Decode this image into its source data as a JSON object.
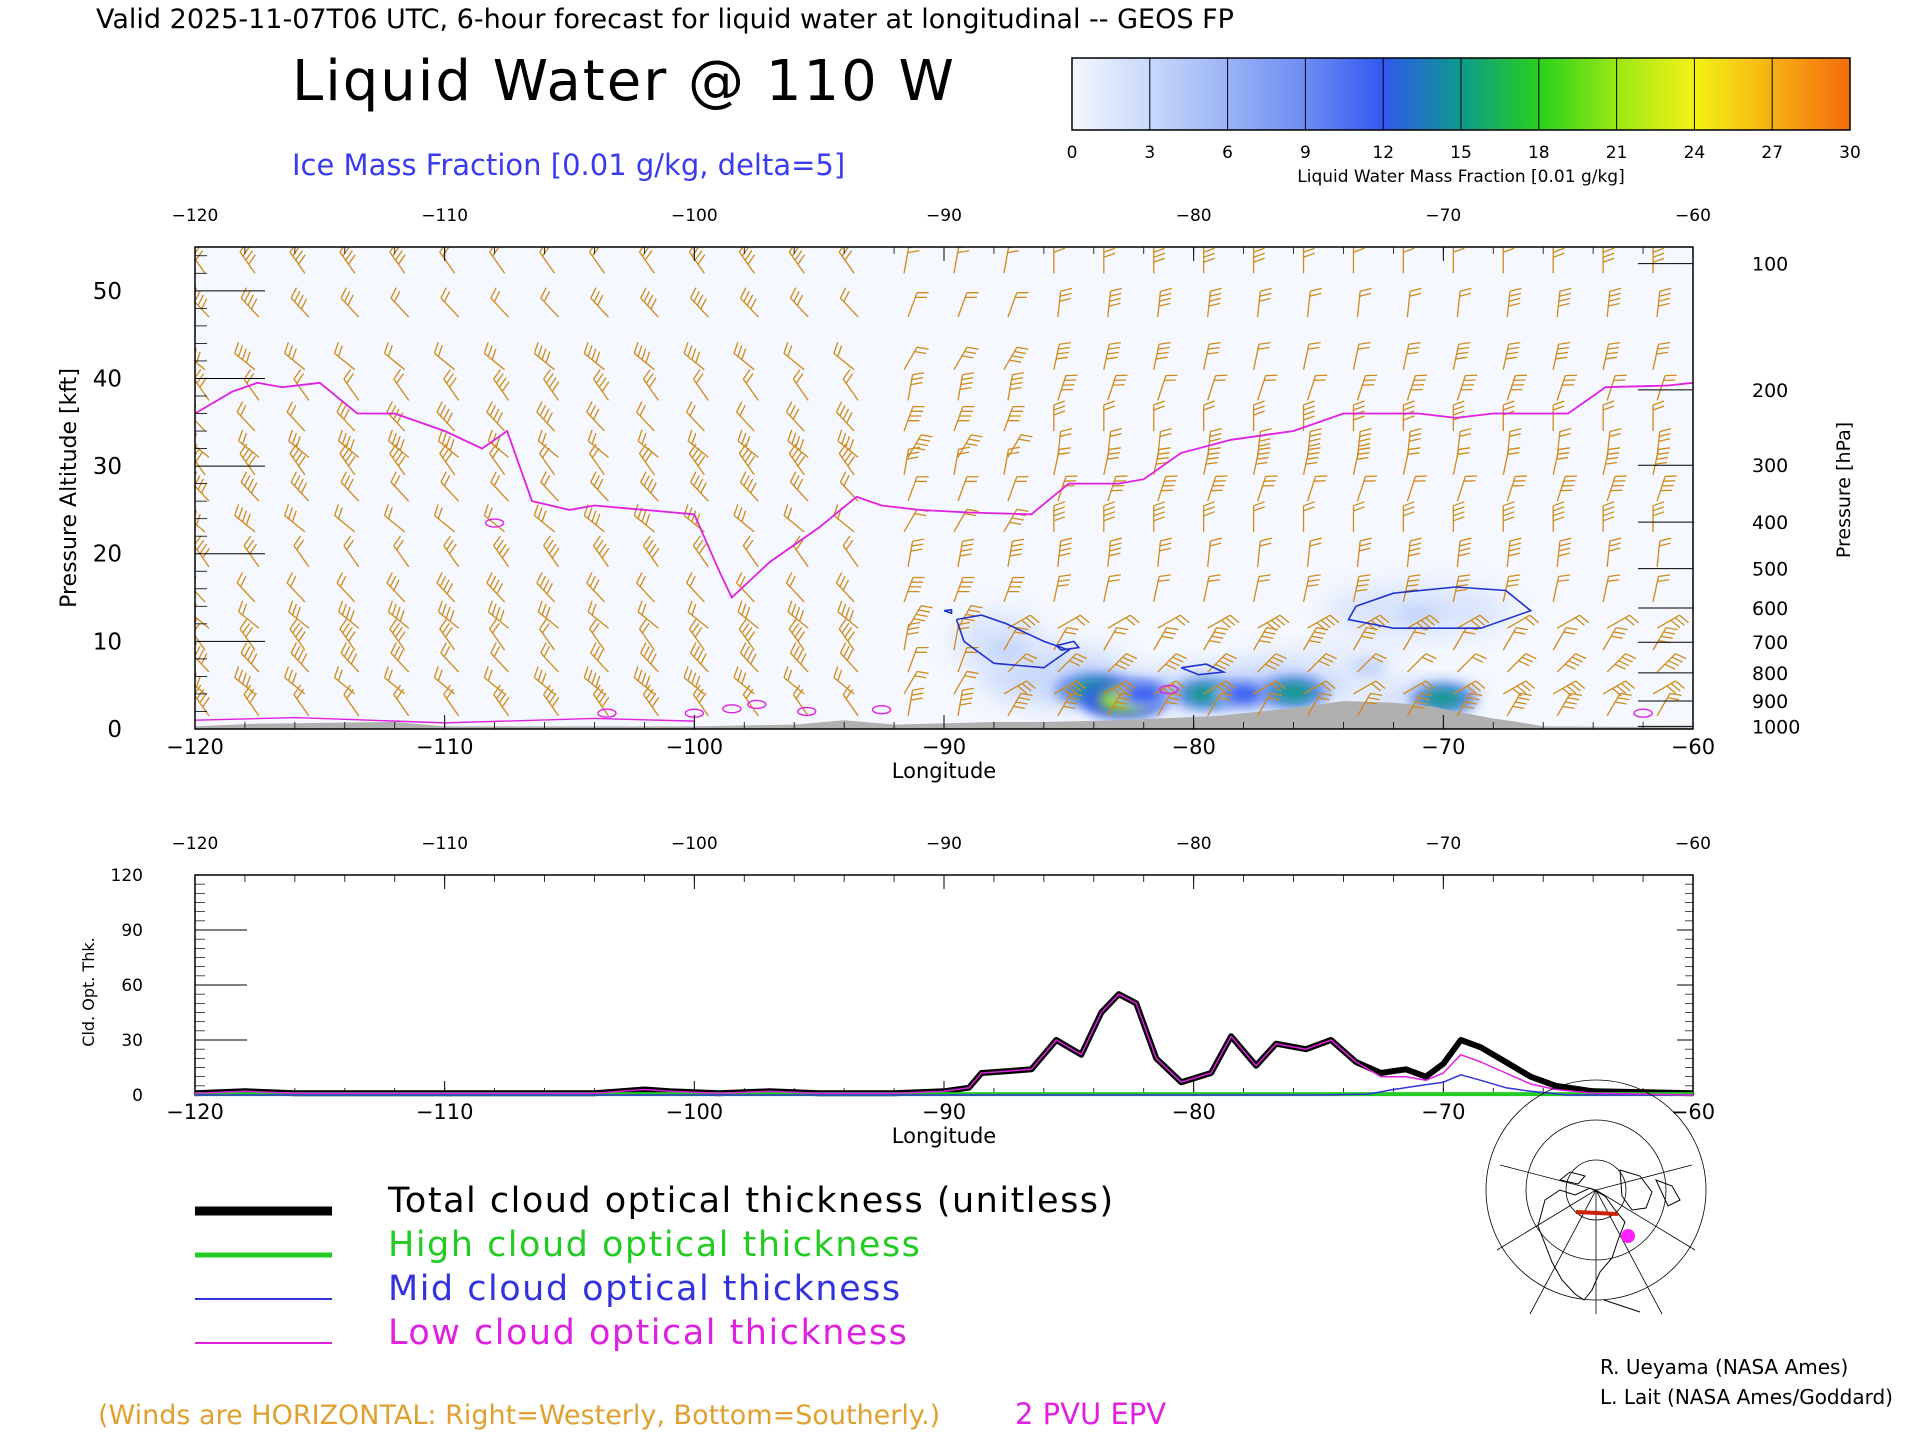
{
  "header": {
    "valid_line": "Valid 2025-11-07T06 UTC, 6-hour forecast for liquid water at longitudinal -- GEOS FP",
    "main_title": "Liquid Water @ 110 W",
    "ice_contour_label": "Ice Mass Fraction [0.01 g/kg, delta=5]"
  },
  "colorbar": {
    "ticks": [
      "0",
      "3",
      "6",
      "9",
      "12",
      "15",
      "18",
      "21",
      "24",
      "27",
      "30"
    ],
    "label": "Liquid Water Mass Fraction [0.01 g/kg]",
    "colors": [
      "#f4f7ff",
      "#c8d8fb",
      "#9ab3f6",
      "#6d8cf2",
      "#3158f0",
      "#0c9a8c",
      "#28d01c",
      "#9be814",
      "#f4f214",
      "#f6b012",
      "#f46a0c",
      "#f01d06"
    ]
  },
  "footer": {
    "winds_note": "(Winds are HORIZONTAL: Right=Westerly, Bottom=Southerly.)",
    "epv_label": "2 PVU EPV",
    "credit1": "R. Ueyama (NASA Ames)",
    "credit2": "L. Lait (NASA Ames/Goddard)"
  },
  "legend": [
    {
      "label": "Total cloud optical thickness (unitless)",
      "color": "#000000"
    },
    {
      "label": "High cloud optical thickness",
      "color": "#22cc22"
    },
    {
      "label": "Mid cloud optical thickness",
      "color": "#3333dd"
    },
    {
      "label": "Low cloud optical thickness",
      "color": "#e020e0"
    }
  ],
  "chart_data": [
    {
      "type": "heatmap",
      "title": "Liquid Water @ 110 W",
      "xlabel": "Longitude",
      "ylabel": "Pressure Altitude [kft]",
      "ylabel_right": "Pressure [hPa]",
      "xlim": [
        -120,
        -60
      ],
      "ylim": [
        0,
        55
      ],
      "x_ticks": [
        "-120",
        "-110",
        "-100",
        "-90",
        "-80",
        "-70",
        "-60"
      ],
      "x_tick_labels": [
        "−120",
        "−110",
        "−100",
        "−90",
        "−80",
        "−70",
        "−60"
      ],
      "y_ticks": [
        "0",
        "10",
        "20",
        "30",
        "40",
        "50"
      ],
      "pressure_ticks": [
        {
          "label": "100",
          "kft": 53.1
        },
        {
          "label": "200",
          "kft": 38.7
        },
        {
          "label": "300",
          "kft": 30.1
        },
        {
          "label": "400",
          "kft": 23.6
        },
        {
          "label": "500",
          "kft": 18.3
        },
        {
          "label": "600",
          "kft": 13.8
        },
        {
          "label": "700",
          "kft": 9.9
        },
        {
          "label": "800",
          "kft": 6.4
        },
        {
          "label": "900",
          "kft": 3.2
        },
        {
          "label": "1000",
          "kft": 0.3
        }
      ],
      "epv_2pvu_line": [
        [
          -120,
          36
        ],
        [
          -118.5,
          38.5
        ],
        [
          -117.5,
          39.5
        ],
        [
          -116.5,
          39
        ],
        [
          -115,
          39.5
        ],
        [
          -113.5,
          36
        ],
        [
          -112,
          36
        ],
        [
          -110,
          34
        ],
        [
          -108.5,
          32
        ],
        [
          -107.5,
          34
        ],
        [
          -106.5,
          26
        ],
        [
          -105,
          25
        ],
        [
          -104,
          25.5
        ],
        [
          -102,
          25
        ],
        [
          -100,
          24.5
        ],
        [
          -99,
          18
        ],
        [
          -98.5,
          15
        ],
        [
          -97,
          19
        ],
        [
          -95,
          23
        ],
        [
          -93.5,
          26.5
        ],
        [
          -92.5,
          25.5
        ],
        [
          -91,
          25
        ],
        [
          -89,
          24.7
        ],
        [
          -86.5,
          24.5
        ],
        [
          -85,
          28
        ],
        [
          -83,
          28
        ],
        [
          -82,
          28.5
        ],
        [
          -80.5,
          31.5
        ],
        [
          -78.5,
          33
        ],
        [
          -76,
          34
        ],
        [
          -74,
          36
        ],
        [
          -71,
          36
        ],
        [
          -69.5,
          35.5
        ],
        [
          -68,
          36
        ],
        [
          -65,
          36
        ],
        [
          -63.5,
          39
        ],
        [
          -61,
          39.2
        ],
        [
          -60,
          39.5
        ]
      ],
      "liquid_water_blobs": [
        {
          "lon": -85.0,
          "kft": 4.5,
          "value": 7
        },
        {
          "lon": -84.0,
          "kft": 4.5,
          "value": 16
        },
        {
          "lon": -82.8,
          "kft": 3.3,
          "value": 20
        },
        {
          "lon": -82.0,
          "kft": 4.0,
          "value": 12
        },
        {
          "lon": -79.5,
          "kft": 4.0,
          "value": 14
        },
        {
          "lon": -78.0,
          "kft": 4.0,
          "value": 12
        },
        {
          "lon": -76.0,
          "kft": 4.2,
          "value": 15
        },
        {
          "lon": -70.0,
          "kft": 3.5,
          "value": 14
        },
        {
          "lon": -71.0,
          "kft": 13.0,
          "value": 4
        },
        {
          "lon": -87.5,
          "kft": 9.0,
          "value": 4
        },
        {
          "lon": -73.0,
          "kft": 7.0,
          "value": 3
        }
      ],
      "ice_contours": [
        {
          "name": "cirrus-east",
          "points": [
            [
              -73.5,
              14
            ],
            [
              -72,
              15.5
            ],
            [
              -69.5,
              16.2
            ],
            [
              -67.5,
              15.8
            ],
            [
              -66.5,
              13.5
            ],
            [
              -68.5,
              11.5
            ],
            [
              -72,
              11.5
            ],
            [
              -73.8,
              12.5
            ],
            [
              -73.5,
              14
            ]
          ]
        },
        {
          "name": "mid-west",
          "points": [
            [
              -89.5,
              12.5
            ],
            [
              -88.5,
              13
            ],
            [
              -87.5,
              12
            ],
            [
              -86,
              10
            ],
            [
              -85,
              9
            ],
            [
              -86,
              7
            ],
            [
              -88,
              7.5
            ],
            [
              -89.2,
              10
            ],
            [
              -89.5,
              12.5
            ]
          ]
        },
        {
          "name": "small-1",
          "points": [
            [
              -85.5,
              9.5
            ],
            [
              -84.8,
              10
            ],
            [
              -84.6,
              9.3
            ],
            [
              -85.3,
              9
            ],
            [
              -85.5,
              9.5
            ]
          ]
        },
        {
          "name": "small-2",
          "points": [
            [
              -80.5,
              7
            ],
            [
              -79.5,
              7.4
            ],
            [
              -78.8,
              6.5
            ],
            [
              -79.8,
              6.2
            ],
            [
              -80.5,
              7
            ]
          ]
        },
        {
          "name": "small-3",
          "points": [
            [
              -90,
              13.5
            ],
            [
              -89.7,
              13.6
            ],
            [
              -89.7,
              13.2
            ],
            [
              -90,
              13.5
            ]
          ]
        }
      ],
      "topography_kft": [
        [
          -120,
          0.3
        ],
        [
          -117.5,
          0.6
        ],
        [
          -112,
          0.8
        ],
        [
          -110,
          0.3
        ],
        [
          -106,
          0.3
        ],
        [
          -100,
          0.3
        ],
        [
          -96,
          0.5
        ],
        [
          -94,
          1
        ],
        [
          -92,
          0.5
        ],
        [
          -88,
          0.8
        ],
        [
          -86,
          0.8
        ],
        [
          -83,
          1.0
        ],
        [
          -79,
          1.5
        ],
        [
          -76,
          2.4
        ],
        [
          -74,
          3.2
        ],
        [
          -72,
          3.0
        ],
        [
          -70.5,
          2.6
        ],
        [
          -69.5,
          2.0
        ],
        [
          -68,
          1.2
        ],
        [
          -67,
          0.8
        ],
        [
          -66,
          0.3
        ],
        [
          -60,
          0.2
        ]
      ],
      "wind_barb_columns": [
        "-120",
        "-118",
        "-116",
        "-114",
        "-112",
        "-110",
        "-108",
        "-106",
        "-104",
        "-102",
        "-100",
        "-98",
        "-96",
        "-94",
        "-92",
        "-90",
        "-88",
        "-86",
        "-84",
        "-82",
        "-80",
        "-78",
        "-76",
        "-74",
        "-72",
        "-70",
        "-68",
        "-66",
        "-64",
        "-62"
      ]
    },
    {
      "type": "line",
      "xlabel": "Longitude",
      "ylabel": "Cld. Opt. Thk.",
      "xlim": [
        -120,
        -60
      ],
      "ylim": [
        0,
        120
      ],
      "y_ticks": [
        "0",
        "30",
        "60",
        "90",
        "120"
      ],
      "series": [
        {
          "name": "Total cloud optical thickness (unitless)",
          "color": "#000000",
          "width": 6,
          "x": [
            -120,
            -118,
            -116,
            -110,
            -104,
            -102,
            -101,
            -99,
            -97,
            -95,
            -92,
            -90,
            -89,
            -88.5,
            -87.5,
            -86.5,
            -85.5,
            -84.5,
            -83.7,
            -83,
            -82.3,
            -81.5,
            -80.5,
            -79.3,
            -78.5,
            -77.5,
            -76.7,
            -75.5,
            -74.5,
            -73.5,
            -72.5,
            -71.5,
            -70.7,
            -70,
            -69.3,
            -68.5,
            -67.5,
            -66.5,
            -65.5,
            -64,
            -60
          ],
          "y": [
            1,
            2,
            1,
            1,
            1,
            3,
            2,
            1,
            2,
            1,
            1,
            2,
            4,
            12,
            13,
            14,
            30,
            22,
            45,
            55,
            50,
            20,
            7,
            12,
            32,
            16,
            28,
            25,
            30,
            18,
            12,
            14,
            10,
            17,
            30,
            26,
            18,
            10,
            5,
            2,
            1
          ]
        },
        {
          "name": "High cloud optical thickness",
          "color": "#22cc22",
          "width": 4,
          "x": [
            -120,
            -60
          ],
          "y": [
            0.5,
            0.5
          ]
        },
        {
          "name": "Mid cloud optical thickness",
          "color": "#3333dd",
          "width": 1.5,
          "x": [
            -120,
            -75,
            -73,
            -72,
            -71,
            -70,
            -69.3,
            -68.5,
            -67.5,
            -66.5,
            -65,
            -60
          ],
          "y": [
            0,
            0,
            0.5,
            3,
            5,
            7,
            11,
            8,
            4,
            2,
            0,
            0
          ]
        },
        {
          "name": "Low cloud optical thickness",
          "color": "#e020e0",
          "width": 1.5,
          "x": [
            -120,
            -118,
            -116,
            -110,
            -104,
            -102,
            -101,
            -99,
            -97,
            -95,
            -92,
            -90,
            -89,
            -88.5,
            -87.5,
            -86.5,
            -85.5,
            -84.5,
            -83.7,
            -83,
            -82.3,
            -81.5,
            -80.5,
            -79.3,
            -78.5,
            -77.5,
            -76.7,
            -75.5,
            -74.5,
            -73.5,
            -72.5,
            -71.5,
            -70.7,
            -70,
            -69.3,
            -68.5,
            -67.5,
            -66.5,
            -65.5,
            -64,
            -60
          ],
          "y": [
            1,
            2,
            1,
            1,
            1,
            3,
            2,
            1,
            2,
            1,
            1,
            2,
            4,
            12,
            13,
            14,
            30,
            22,
            45,
            55,
            50,
            20,
            7,
            12,
            32,
            16,
            28,
            25,
            30,
            18,
            10,
            10,
            8,
            12,
            22,
            18,
            12,
            6,
            3,
            1,
            0
          ]
        }
      ]
    }
  ]
}
